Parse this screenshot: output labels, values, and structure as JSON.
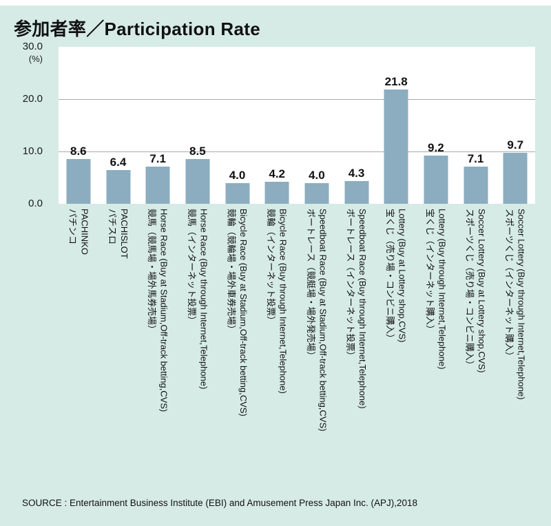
{
  "title": "参加者率／Participation Rate",
  "source": "SOURCE : Entertainment Business Institute (EBI) and Amusement Press Japan Inc. (APJ),2018",
  "colors": {
    "page_background": "#d6ebe6",
    "plot_background": "#ffffff",
    "bar": "#8badbf",
    "gridline": "#a9a9a9",
    "text": "#111111"
  },
  "chart_data": {
    "type": "bar",
    "title": "参加者率／Participation Rate",
    "unit_label": "(%)",
    "ylim": [
      0,
      30
    ],
    "yticks": [
      30,
      20,
      10,
      0
    ],
    "ytick_labels": [
      "30.0",
      "20.0",
      "10.0",
      "0.0"
    ],
    "gridlines": [
      20,
      10
    ],
    "grid": "horizontal",
    "legend": "none",
    "bar_color": "#8badbf",
    "categories": [
      {
        "label_en": "PACHINKO",
        "label_ja": "パチンコ"
      },
      {
        "label_en": "PACHISLOT",
        "label_ja": "パチスロ"
      },
      {
        "label_en": "Horse Race (Buy at Stadium,Off-track betting,CVS)",
        "label_ja": "競馬（競馬場・場外馬券売場）"
      },
      {
        "label_en": "Horse Race (Buy through Internet,Telephone)",
        "label_ja": "競馬（インターネット投票）"
      },
      {
        "label_en": "Bicycle Race (Buy at Stadium,Off-track betting,CVS)",
        "label_ja": "競輪（競輪場・場外車券売場）"
      },
      {
        "label_en": "Bicycle Race (Buy through Internet,Telephone)",
        "label_ja": "競輪（インターネット投票）"
      },
      {
        "label_en": "Speedboat Race (Buy at Stadium,Off-track betting,CVS)",
        "label_ja": "ボートレース（競艇場・場外発売場）"
      },
      {
        "label_en": "Speedboat Race (Buy through Internet,Telephone)",
        "label_ja": "ボートレース（インターネット投票）"
      },
      {
        "label_en": "Lottery (Buy at Lottery shop,CVS)",
        "label_ja": "宝くじ（売り場・コンビニ購入）"
      },
      {
        "label_en": "Lottery (Buy through Internet,Telephone)",
        "label_ja": "宝くじ（インターネット購入）"
      },
      {
        "label_en": "Soccer Lottery (Buy at Lottery shop,CVS)",
        "label_ja": "スポーツくじ（売り場・コンビニ購入）"
      },
      {
        "label_en": "Soccer Lottery (Buy through Internet,Telephone)",
        "label_ja": "スポーツくじ（インターネット購入）"
      }
    ],
    "values": [
      8.6,
      6.4,
      7.1,
      8.5,
      4.0,
      4.2,
      4.0,
      4.3,
      21.8,
      9.2,
      7.1,
      9.7
    ],
    "value_labels": [
      "8.6",
      "6.4",
      "7.1",
      "8.5",
      "4.0",
      "4.2",
      "4.0",
      "4.3",
      "21.8",
      "9.2",
      "7.1",
      "9.7"
    ]
  }
}
